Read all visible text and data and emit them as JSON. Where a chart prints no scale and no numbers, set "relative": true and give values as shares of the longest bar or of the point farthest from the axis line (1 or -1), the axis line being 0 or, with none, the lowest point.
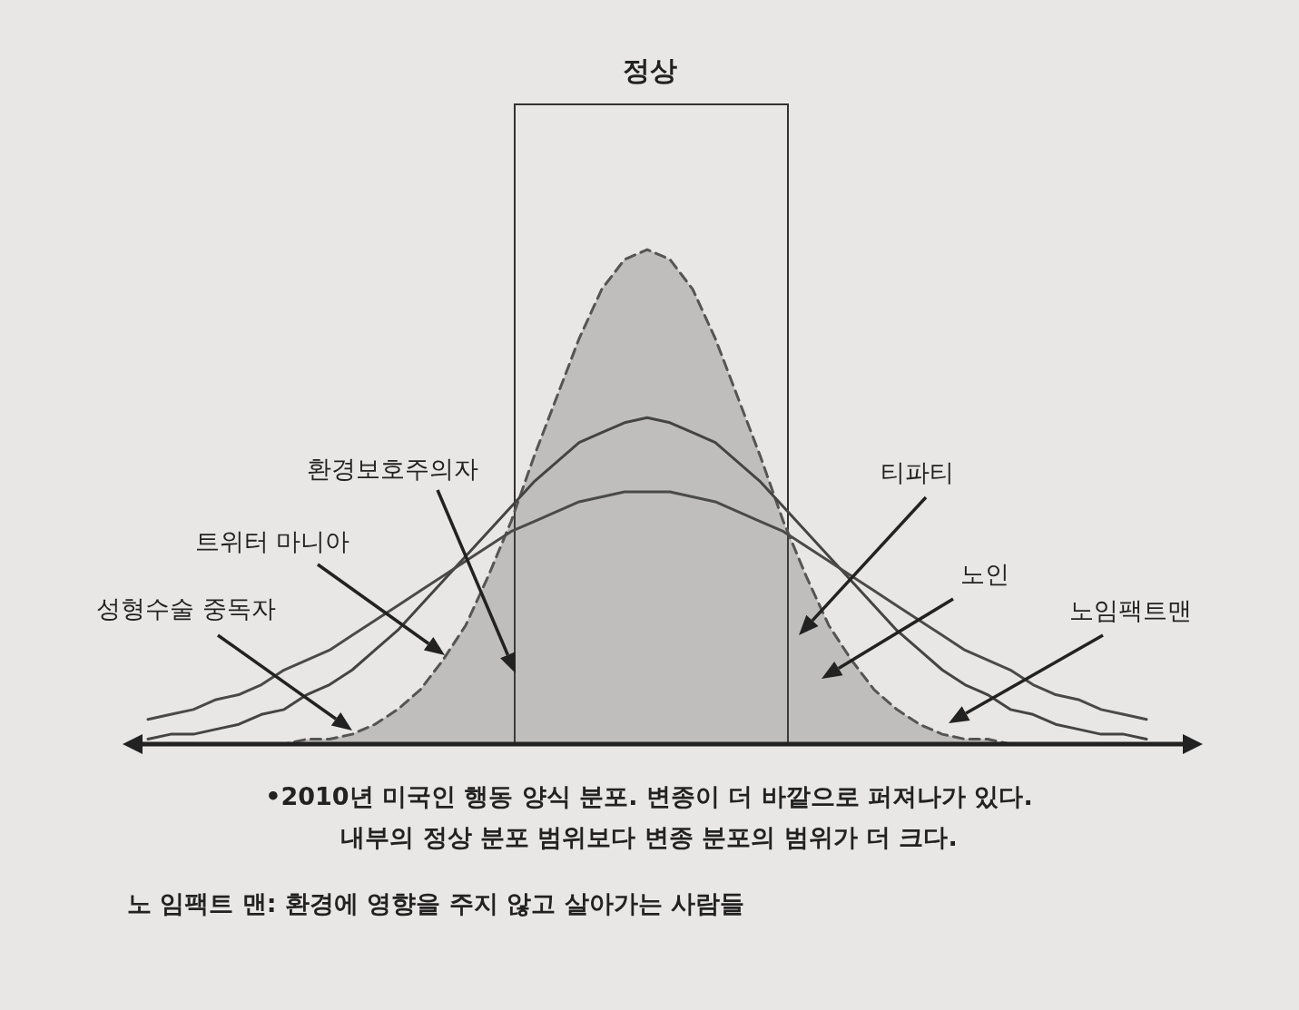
{
  "chart_data": {
    "type": "line",
    "relative": true,
    "categories": [
      null,
      null,
      null,
      null,
      null,
      null,
      null,
      null,
      null,
      null,
      null,
      null,
      null,
      null,
      null,
      null,
      null,
      null,
      null,
      null,
      null,
      null,
      null,
      null,
      null,
      null,
      null,
      null,
      null,
      null,
      null,
      null,
      null,
      null,
      null,
      null,
      null,
      null,
      null,
      null,
      null,
      null,
      null,
      null,
      null
    ],
    "series": [
      {
        "type": "area",
        "line_style": "dashed",
        "color": "#555555",
        "values": [
          0,
          0,
          0,
          0,
          0,
          0,
          0,
          0.01,
          0.01,
          0.02,
          0.04,
          0.07,
          0.11,
          0.17,
          0.24,
          0.34,
          0.45,
          0.58,
          0.7,
          0.82,
          0.92,
          0.98,
          1,
          0.98,
          0.92,
          0.82,
          0.7,
          0.58,
          0.45,
          0.34,
          0.24,
          0.17,
          0.11,
          0.07,
          0.04,
          0.02,
          0.01,
          0.01,
          0,
          0,
          0,
          0,
          0,
          0,
          0
        ]
      },
      {
        "type": "line",
        "line_style": "solid",
        "color": "#444444",
        "values": [
          0.01,
          0.02,
          0.02,
          0.03,
          0.04,
          0.06,
          0.07,
          0.1,
          0.12,
          0.15,
          0.19,
          0.23,
          0.28,
          0.33,
          0.38,
          0.43,
          0.48,
          0.53,
          0.57,
          0.61,
          0.63,
          0.65,
          0.66,
          0.65,
          0.63,
          0.61,
          0.57,
          0.53,
          0.48,
          0.43,
          0.38,
          0.33,
          0.28,
          0.23,
          0.19,
          0.15,
          0.12,
          0.1,
          0.07,
          0.06,
          0.04,
          0.03,
          0.02,
          0.02,
          0.01
        ]
      },
      {
        "type": "line",
        "line_style": "solid",
        "color": "#4a4a4a",
        "values": [
          0.05,
          0.06,
          0.07,
          0.09,
          0.1,
          0.12,
          0.15,
          0.17,
          0.19,
          0.22,
          0.25,
          0.28,
          0.31,
          0.34,
          0.37,
          0.4,
          0.43,
          0.45,
          0.47,
          0.49,
          0.5,
          0.51,
          0.51,
          0.51,
          0.5,
          0.49,
          0.47,
          0.45,
          0.43,
          0.4,
          0.37,
          0.34,
          0.31,
          0.28,
          0.25,
          0.22,
          0.19,
          0.17,
          0.15,
          0.12,
          0.1,
          0.09,
          0.07,
          0.06,
          0.05
        ]
      }
    ],
    "annotations": [
      "정상",
      "성형수술 중독자",
      "트위터 마니아",
      "환경보호주의자",
      "티파티",
      "노인",
      "노임팩트맨",
      "•2010년 미국인 행동 양식 분포. 변종이 더 바깥으로 퍼져나가 있다.",
      "내부의 정상 분포 범위보다 변종 분포의 범위가 더 크다.",
      "노 임팩트 맨: 환경에 영향을 주지 않고 살아가는 사람들"
    ]
  }
}
